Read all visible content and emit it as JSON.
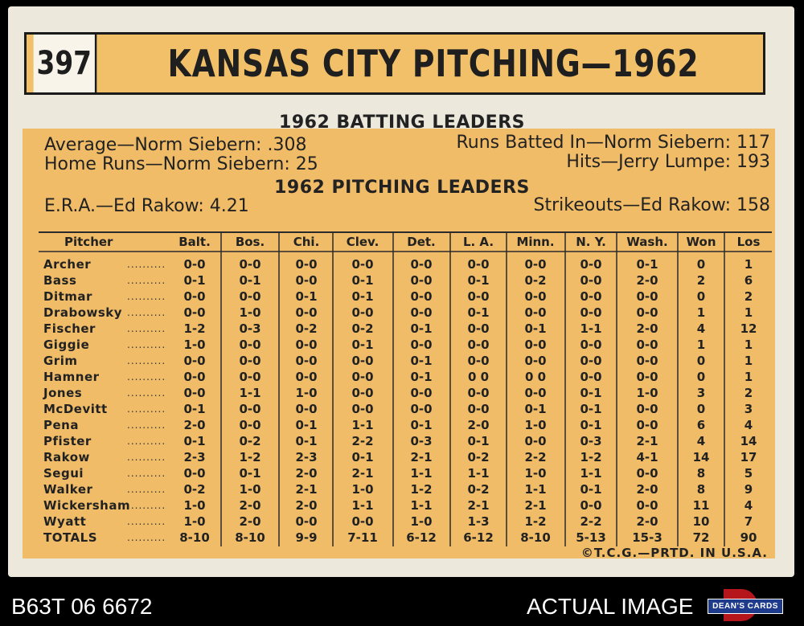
{
  "card": {
    "number": "397",
    "title": "KANSAS CITY PITCHING—1962",
    "batting_title": "1962 BATTING LEADERS",
    "batting_leaders": [
      "Average—Norm Siebern: .308",
      "Runs Batted In—Norm Siebern: 117",
      "Home Runs—Norm Siebern: 25",
      "Hits—Jerry Lumpe: 193"
    ],
    "pitching_title": "1962 PITCHING LEADERS",
    "pitching_leaders": [
      "E.R.A.—Ed Rakow: 4.21",
      "Strikeouts—Ed Rakow: 158"
    ],
    "copyright": "©T.C.G.—PRTD. IN U.S.A."
  },
  "table": {
    "headers": [
      "Pitcher",
      "Balt.",
      "Bos.",
      "Chi.",
      "Clev.",
      "Det.",
      "L. A.",
      "Minn.",
      "N. Y.",
      "Wash.",
      "Won",
      "Los"
    ],
    "rows": [
      {
        "name": "Archer",
        "values": [
          "0-0",
          "0-0",
          "0-0",
          "0-0",
          "0-0",
          "0-0",
          "0-0",
          "0-0",
          "0-1",
          "0",
          "1"
        ]
      },
      {
        "name": "Bass",
        "values": [
          "0-1",
          "0-1",
          "0-0",
          "0-1",
          "0-0",
          "0-1",
          "0-2",
          "0-0",
          "2-0",
          "2",
          "6"
        ]
      },
      {
        "name": "Ditmar",
        "values": [
          "0-0",
          "0-0",
          "0-1",
          "0-1",
          "0-0",
          "0-0",
          "0-0",
          "0-0",
          "0-0",
          "0",
          "2"
        ]
      },
      {
        "name": "Drabowsky",
        "values": [
          "0-0",
          "1-0",
          "0-0",
          "0-0",
          "0-0",
          "0-1",
          "0-0",
          "0-0",
          "0-0",
          "1",
          "1"
        ]
      },
      {
        "name": "Fischer",
        "values": [
          "1-2",
          "0-3",
          "0-2",
          "0-2",
          "0-1",
          "0-0",
          "0-1",
          "1-1",
          "2-0",
          "4",
          "12"
        ]
      },
      {
        "name": "Giggie",
        "values": [
          "1-0",
          "0-0",
          "0-0",
          "0-1",
          "0-0",
          "0-0",
          "0-0",
          "0-0",
          "0-0",
          "1",
          "1"
        ]
      },
      {
        "name": "Grim",
        "values": [
          "0-0",
          "0-0",
          "0-0",
          "0-0",
          "0-1",
          "0-0",
          "0-0",
          "0-0",
          "0-0",
          "0",
          "1"
        ]
      },
      {
        "name": "Hamner",
        "values": [
          "0-0",
          "0-0",
          "0-0",
          "0-0",
          "0-1",
          "0 0",
          "0 0",
          "0-0",
          "0-0",
          "0",
          "1"
        ]
      },
      {
        "name": "Jones",
        "values": [
          "0-0",
          "1-1",
          "1-0",
          "0-0",
          "0-0",
          "0-0",
          "0-0",
          "0-1",
          "1-0",
          "3",
          "2"
        ]
      },
      {
        "name": "McDevitt",
        "values": [
          "0-1",
          "0-0",
          "0-0",
          "0-0",
          "0-0",
          "0-0",
          "0-1",
          "0-1",
          "0-0",
          "0",
          "3"
        ]
      },
      {
        "name": "Pena",
        "values": [
          "2-0",
          "0-0",
          "0-1",
          "1-1",
          "0-1",
          "2-0",
          "1-0",
          "0-1",
          "0-0",
          "6",
          "4"
        ]
      },
      {
        "name": "Pfister",
        "values": [
          "0-1",
          "0-2",
          "0-1",
          "2-2",
          "0-3",
          "0-1",
          "0-0",
          "0-3",
          "2-1",
          "4",
          "14"
        ]
      },
      {
        "name": "Rakow",
        "values": [
          "2-3",
          "1-2",
          "2-3",
          "0-1",
          "2-1",
          "0-2",
          "2-2",
          "1-2",
          "4-1",
          "14",
          "17"
        ]
      },
      {
        "name": "Segui",
        "values": [
          "0-0",
          "0-1",
          "2-0",
          "2-1",
          "1-1",
          "1-1",
          "1-0",
          "1-1",
          "0-0",
          "8",
          "5"
        ]
      },
      {
        "name": "Walker",
        "values": [
          "0-2",
          "1-0",
          "2-1",
          "1-0",
          "1-2",
          "0-2",
          "1-1",
          "0-1",
          "2-0",
          "8",
          "9"
        ]
      },
      {
        "name": "Wickersham",
        "values": [
          "1-0",
          "2-0",
          "2-0",
          "1-1",
          "1-1",
          "2-1",
          "2-1",
          "0-0",
          "0-0",
          "11",
          "4"
        ]
      },
      {
        "name": "Wyatt",
        "values": [
          "1-0",
          "2-0",
          "0-0",
          "0-0",
          "1-0",
          "1-3",
          "1-2",
          "2-2",
          "2-0",
          "10",
          "7"
        ]
      },
      {
        "name": "TOTALS",
        "values": [
          "8-10",
          "8-10",
          "9-9",
          "7-11",
          "6-12",
          "6-12",
          "8-10",
          "5-13",
          "15-3",
          "72",
          "90"
        ]
      }
    ]
  },
  "footer": {
    "card_id": "B63T 06 6672",
    "image_note": "ACTUAL IMAGE",
    "logo_text": "DEAN'S CARDS"
  },
  "colors": {
    "card_stock": "#ece8db",
    "panel": "#f0bc68",
    "ink": "#222222"
  }
}
